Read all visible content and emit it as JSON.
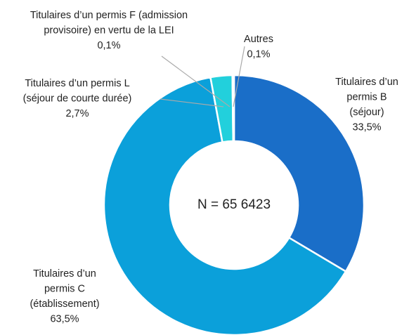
{
  "chart_data": {
    "type": "donut",
    "annotation": "N = 65 6423",
    "categories": [
      [
        "Titulaires d’un",
        "permis B",
        "(séjour)"
      ],
      [
        "Titulaires d’un",
        "permis C",
        "(établissement)"
      ],
      [
        "Titulaires d’un permis L",
        "(séjour de courte durée)"
      ],
      [
        "Titulaires d’un permis F (admission",
        "provisoire) en vertu de la LEI"
      ],
      [
        "Autres"
      ]
    ],
    "values": [
      33.5,
      63.5,
      2.7,
      0.1,
      0.1
    ],
    "value_labels": [
      "33,5%",
      "63,5%",
      "2,7%",
      "0,1%",
      "0,1%"
    ],
    "colors": [
      "#1a6ec8",
      "#0ba0da",
      "#22d0dc",
      "#9fe3ee",
      "#bfe9f2"
    ]
  }
}
